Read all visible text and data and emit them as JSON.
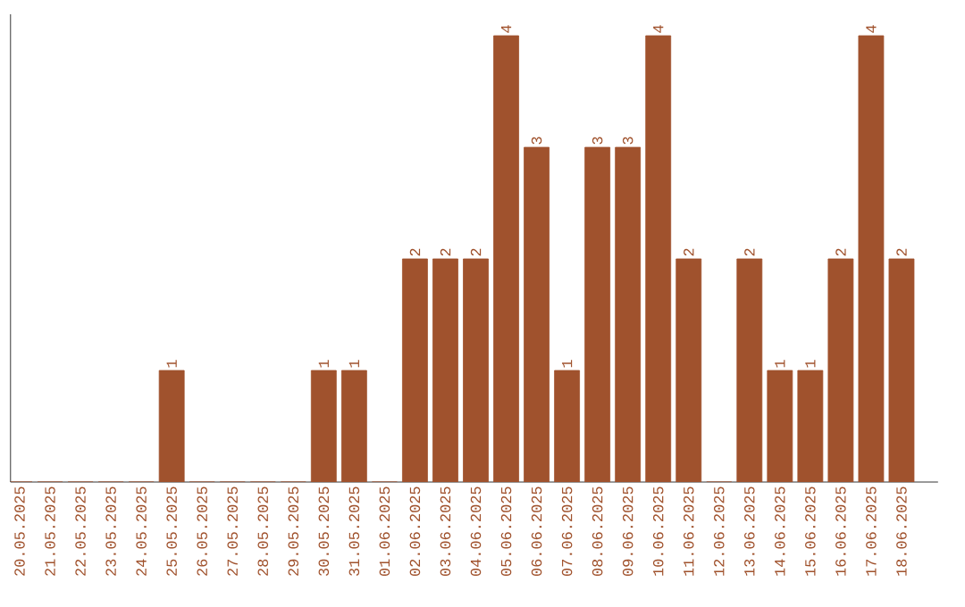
{
  "chart_data": {
    "type": "bar",
    "color": "#a0522d",
    "categories": [
      "20.05.2025",
      "21.05.2025",
      "22.05.2025",
      "23.05.2025",
      "24.05.2025",
      "25.05.2025",
      "26.05.2025",
      "27.05.2025",
      "28.05.2025",
      "29.05.2025",
      "30.05.2025",
      "31.05.2025",
      "01.06.2025",
      "02.06.2025",
      "03.06.2025",
      "04.06.2025",
      "05.06.2025",
      "06.06.2025",
      "07.06.2025",
      "08.06.2025",
      "09.06.2025",
      "10.06.2025",
      "11.06.2025",
      "12.06.2025",
      "13.06.2025",
      "14.06.2025",
      "15.06.2025",
      "16.06.2025",
      "17.06.2025",
      "18.06.2025"
    ],
    "values": [
      0,
      0,
      0,
      0,
      0,
      1,
      0,
      0,
      0,
      0,
      1,
      1,
      0,
      2,
      2,
      2,
      4,
      3,
      1,
      3,
      3,
      4,
      2,
      0,
      2,
      1,
      1,
      2,
      4,
      2
    ],
    "value_labels": [
      null,
      null,
      null,
      null,
      null,
      "1",
      null,
      null,
      null,
      null,
      "1",
      "1",
      null,
      "2",
      "2",
      "2",
      "4",
      "3",
      "1",
      "3",
      "3",
      "4",
      "2",
      null,
      "2",
      "1",
      "1",
      "2",
      "4",
      "2"
    ],
    "tick_labels": "x"
  }
}
